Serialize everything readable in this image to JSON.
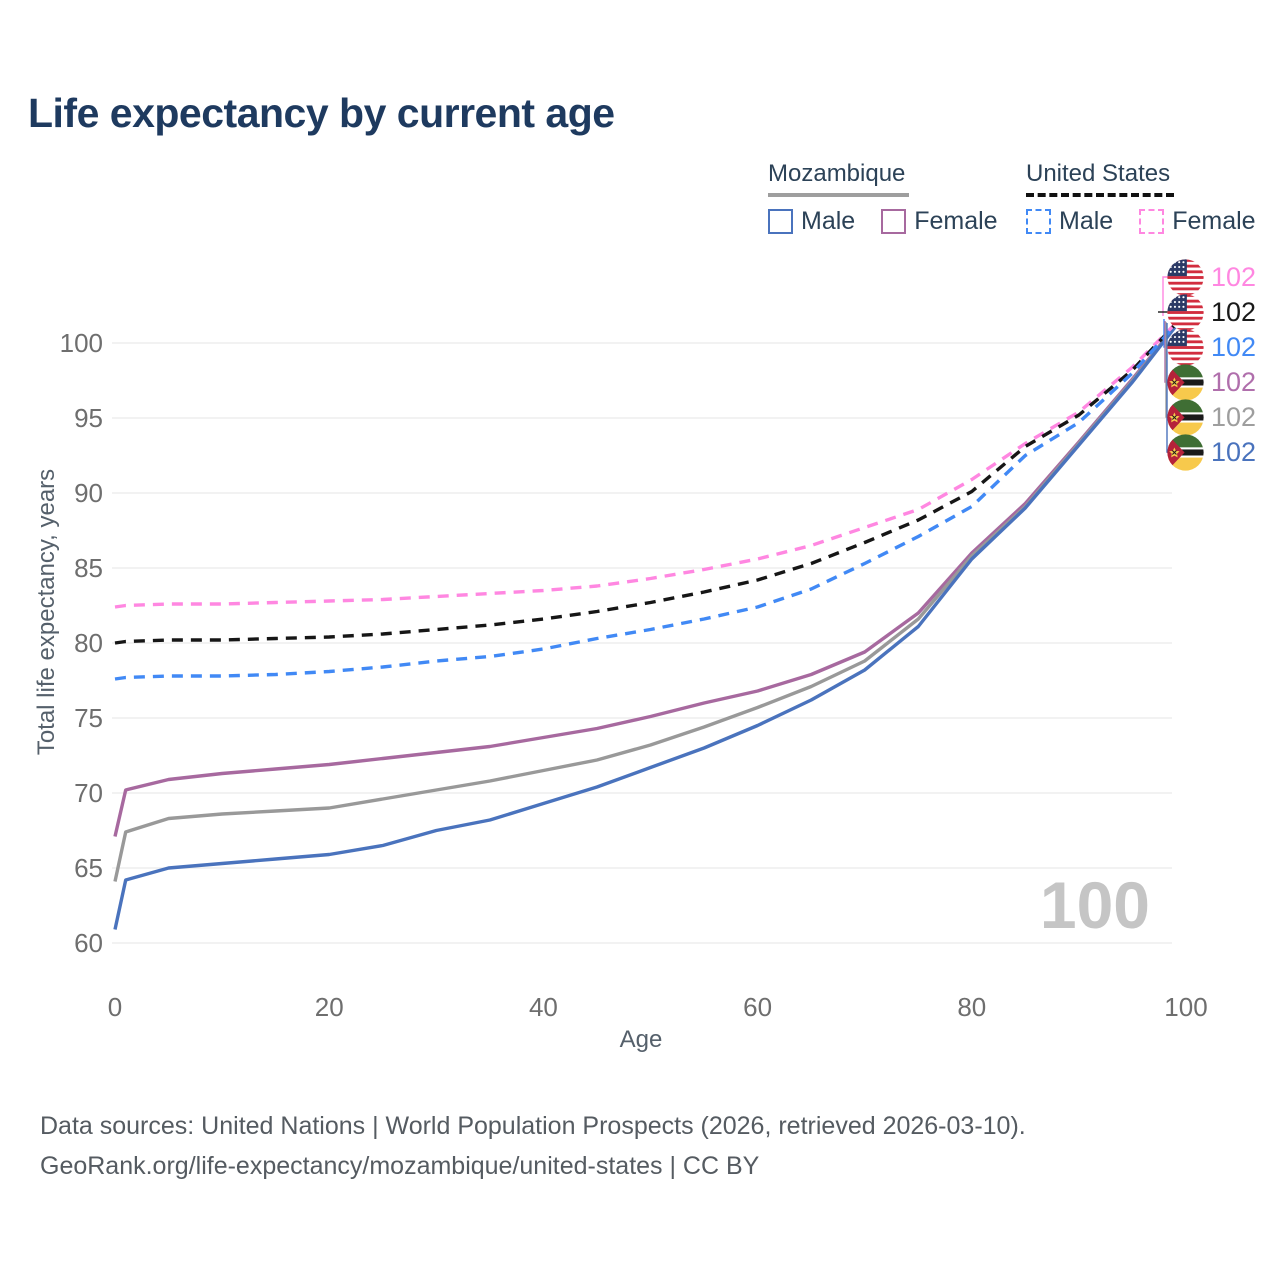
{
  "header": {
    "title": "Life expectancy by current age"
  },
  "legend": {
    "groups": [
      {
        "label": "Mozambique",
        "line_style": "solid",
        "line_color": "#9e9e9e",
        "items": [
          {
            "label": "Male",
            "color": "#4a73bd",
            "dashed": false
          },
          {
            "label": "Female",
            "color": "#a7699f",
            "dashed": false
          }
        ]
      },
      {
        "label": "United States",
        "line_style": "dashed",
        "line_color": "#111111",
        "items": [
          {
            "label": "Male",
            "color": "#4189f5",
            "dashed": true
          },
          {
            "label": "Female",
            "color": "#ff87e1",
            "dashed": true
          }
        ]
      }
    ]
  },
  "chart_data": {
    "type": "line",
    "title": "Life expectancy by current age",
    "xlabel": "Age",
    "ylabel": "Total life expectancy, years",
    "xlim": [
      0,
      100
    ],
    "ylim": [
      60,
      103
    ],
    "xticks": [
      0,
      20,
      40,
      60,
      80,
      100
    ],
    "yticks": [
      60,
      65,
      70,
      75,
      80,
      85,
      90,
      95,
      100
    ],
    "grid": "horizontal",
    "legend_position": "top-right",
    "x": [
      0,
      1,
      5,
      10,
      15,
      20,
      25,
      30,
      35,
      40,
      45,
      50,
      55,
      60,
      65,
      70,
      75,
      80,
      85,
      90,
      95,
      100
    ],
    "series": [
      {
        "name": "Mozambique Female",
        "country": "Mozambique",
        "sex": "Female",
        "color": "#a7699f",
        "dashed": false,
        "values": [
          67.1,
          70.2,
          70.9,
          71.3,
          71.6,
          71.9,
          72.3,
          72.7,
          73.1,
          73.7,
          74.3,
          75.1,
          76.0,
          76.8,
          77.9,
          79.4,
          82.0,
          86.0,
          89.3,
          93.4,
          97.6,
          102
        ]
      },
      {
        "name": "Mozambique Both sexes",
        "country": "Mozambique",
        "sex": "Both",
        "color": "#999999",
        "dashed": false,
        "values": [
          64.1,
          67.4,
          68.3,
          68.6,
          68.8,
          69.0,
          69.6,
          70.2,
          70.8,
          71.5,
          72.2,
          73.2,
          74.4,
          75.7,
          77.1,
          78.8,
          81.6,
          85.8,
          89.1,
          93.3,
          97.5,
          102
        ]
      },
      {
        "name": "Mozambique Male",
        "country": "Mozambique",
        "sex": "Male",
        "color": "#4a73bd",
        "dashed": false,
        "values": [
          60.9,
          64.2,
          65.0,
          65.3,
          65.6,
          65.9,
          66.5,
          67.5,
          68.2,
          69.3,
          70.4,
          71.7,
          73.0,
          74.5,
          76.2,
          78.2,
          81.1,
          85.6,
          89.0,
          93.2,
          97.4,
          102
        ]
      },
      {
        "name": "United States Female",
        "country": "United States",
        "sex": "Female",
        "color": "#ff87e1",
        "dashed": true,
        "values": [
          82.4,
          82.5,
          82.6,
          82.6,
          82.7,
          82.8,
          82.9,
          83.1,
          83.3,
          83.5,
          83.8,
          84.3,
          84.9,
          85.6,
          86.5,
          87.7,
          88.9,
          90.9,
          93.3,
          95.4,
          98.4,
          102
        ]
      },
      {
        "name": "United States Both sexes",
        "country": "United States",
        "sex": "Both",
        "color": "#161616",
        "dashed": true,
        "values": [
          80.0,
          80.1,
          80.2,
          80.2,
          80.3,
          80.4,
          80.6,
          80.9,
          81.2,
          81.6,
          82.1,
          82.7,
          83.4,
          84.2,
          85.3,
          86.7,
          88.2,
          90.1,
          93.1,
          95.2,
          98.2,
          102
        ]
      },
      {
        "name": "United States Male",
        "country": "United States",
        "sex": "Male",
        "color": "#4189f5",
        "dashed": true,
        "values": [
          77.6,
          77.7,
          77.8,
          77.8,
          77.9,
          78.1,
          78.4,
          78.8,
          79.1,
          79.6,
          80.3,
          80.9,
          81.6,
          82.4,
          83.6,
          85.3,
          87.1,
          89.1,
          92.5,
          94.7,
          98.0,
          102
        ]
      }
    ]
  },
  "end_labels": [
    {
      "value": "102",
      "flag": "us",
      "series": "United States Female",
      "color": "#ff87e1"
    },
    {
      "value": "102",
      "flag": "us",
      "series": "United States Both sexes",
      "color": "#1a1a1a"
    },
    {
      "value": "102",
      "flag": "us",
      "series": "United States Male",
      "color": "#4189f5"
    },
    {
      "value": "102",
      "flag": "mz",
      "series": "Mozambique Female",
      "color": "#b06fac"
    },
    {
      "value": "102",
      "flag": "mz",
      "series": "Mozambique Both sexes",
      "color": "#9e9e9e"
    },
    {
      "value": "102",
      "flag": "mz",
      "series": "Mozambique Male",
      "color": "#4a73bd"
    }
  ],
  "watermark": "100",
  "footer": {
    "line1": "Data sources: United Nations | World Population Prospects (2026, retrieved 2026-03-10).",
    "line2": "GeoRank.org/life-expectancy/mozambique/united-states | CC BY"
  },
  "colors": {
    "title": "#1e3a5f",
    "tick_label": "#6e6e6e",
    "axis_label": "#55606b",
    "grid": "#ededed",
    "footer": "#555b61",
    "watermark": "#c5c5c5",
    "background": "#ffffff"
  }
}
